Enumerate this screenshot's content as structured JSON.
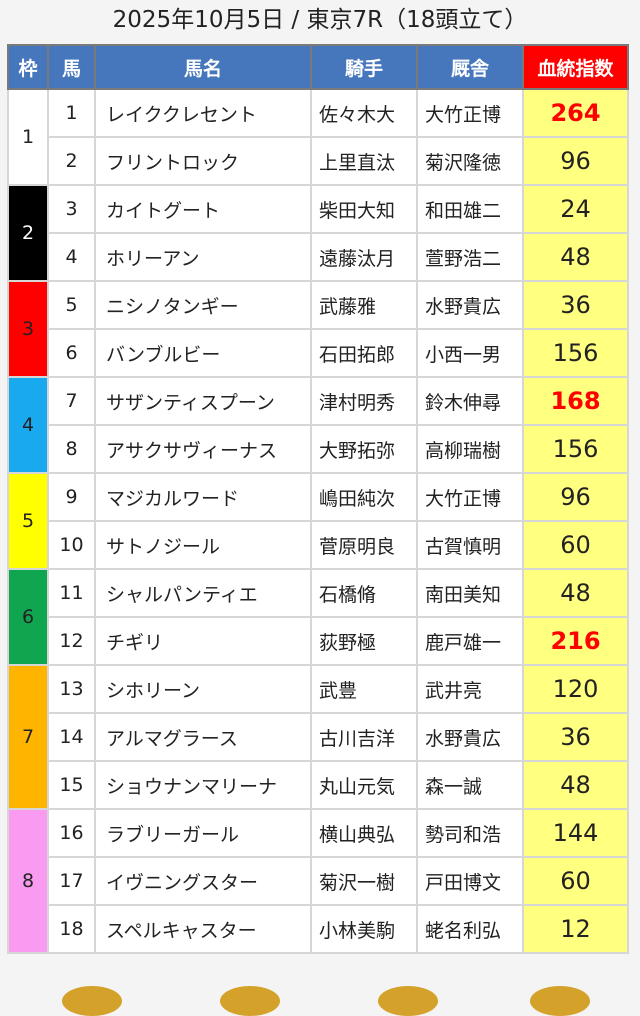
{
  "title": "2025年10月5日 / 東京7R（18頭立て）",
  "headers": {
    "waku": "枠",
    "umaban": "馬",
    "name": "馬名",
    "jockey": "騎手",
    "trainer": "厩舎",
    "index": "血統指数"
  },
  "frames": [
    {
      "waku": "1",
      "color": "#ffffff",
      "text_color": "#222222",
      "count": 2
    },
    {
      "waku": "2",
      "color": "#000000",
      "text_color": "#ffffff",
      "count": 2
    },
    {
      "waku": "3",
      "color": "#ff0000",
      "text_color": "#222222",
      "count": 2
    },
    {
      "waku": "4",
      "color": "#19a9ef",
      "text_color": "#222222",
      "count": 2
    },
    {
      "waku": "5",
      "color": "#ffff00",
      "text_color": "#222222",
      "count": 2
    },
    {
      "waku": "6",
      "color": "#10a650",
      "text_color": "#222222",
      "count": 2
    },
    {
      "waku": "7",
      "color": "#ffb500",
      "text_color": "#222222",
      "count": 3
    },
    {
      "waku": "8",
      "color": "#f99cf1",
      "text_color": "#222222",
      "count": 3
    }
  ],
  "horses": [
    {
      "num": "1",
      "name": "レイククレセント",
      "jockey": "佐々木大",
      "trainer": "大竹正博",
      "index": "264",
      "highlight": true
    },
    {
      "num": "2",
      "name": "フリントロック",
      "jockey": "上里直汰",
      "trainer": "菊沢隆徳",
      "index": "96",
      "highlight": false
    },
    {
      "num": "3",
      "name": "カイトグート",
      "jockey": "柴田大知",
      "trainer": "和田雄二",
      "index": "24",
      "highlight": false
    },
    {
      "num": "4",
      "name": "ホリーアン",
      "jockey": "遠藤汰月",
      "trainer": "萱野浩二",
      "index": "48",
      "highlight": false
    },
    {
      "num": "5",
      "name": "ニシノタンギー",
      "jockey": "武藤雅",
      "trainer": "水野貴広",
      "index": "36",
      "highlight": false
    },
    {
      "num": "6",
      "name": "バンブルビー",
      "jockey": "石田拓郎",
      "trainer": "小西一男",
      "index": "156",
      "highlight": false
    },
    {
      "num": "7",
      "name": "サザンティスプーン",
      "jockey": "津村明秀",
      "trainer": "鈴木伸尋",
      "index": "168",
      "highlight": true
    },
    {
      "num": "8",
      "name": "アサクサヴィーナス",
      "jockey": "大野拓弥",
      "trainer": "高柳瑞樹",
      "index": "156",
      "highlight": false
    },
    {
      "num": "9",
      "name": "マジカルワード",
      "jockey": "嶋田純次",
      "trainer": "大竹正博",
      "index": "96",
      "highlight": false
    },
    {
      "num": "10",
      "name": "サトノジール",
      "jockey": "菅原明良",
      "trainer": "古賀慎明",
      "index": "60",
      "highlight": false
    },
    {
      "num": "11",
      "name": "シャルパンティエ",
      "jockey": "石橋脩",
      "trainer": "南田美知",
      "index": "48",
      "highlight": false
    },
    {
      "num": "12",
      "name": "チギリ",
      "jockey": "荻野極",
      "trainer": "鹿戸雄一",
      "index": "216",
      "highlight": true
    },
    {
      "num": "13",
      "name": "シホリーン",
      "jockey": "武豊",
      "trainer": "武井亮",
      "index": "120",
      "highlight": false
    },
    {
      "num": "14",
      "name": "アルマグラース",
      "jockey": "古川吉洋",
      "trainer": "水野貴広",
      "index": "36",
      "highlight": false
    },
    {
      "num": "15",
      "name": "ショウナンマリーナ",
      "jockey": "丸山元気",
      "trainer": "森一誠",
      "index": "48",
      "highlight": false
    },
    {
      "num": "16",
      "name": "ラブリーガール",
      "jockey": "横山典弘",
      "trainer": "勢司和浩",
      "index": "144",
      "highlight": false
    },
    {
      "num": "17",
      "name": "イヴニングスター",
      "jockey": "菊沢一樹",
      "trainer": "戸田博文",
      "index": "60",
      "highlight": false
    },
    {
      "num": "18",
      "name": "スペルキャスター",
      "jockey": "小林美駒",
      "trainer": "蛯名利弘",
      "index": "12",
      "highlight": false
    }
  ]
}
